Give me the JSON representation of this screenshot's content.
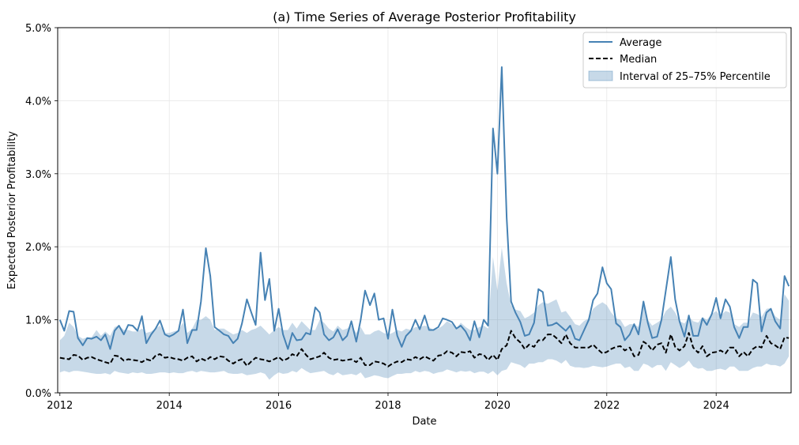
{
  "chart_data": {
    "type": "line",
    "title": "(a) Time Series of Average Posterior Profitability",
    "xlabel": "Date",
    "ylabel": "Expected Posterior Profitability",
    "xlim": [
      2011.96,
      2025.37
    ],
    "ylim": [
      0.0,
      5.0
    ],
    "x_ticks": [
      2012,
      2014,
      2016,
      2018,
      2020,
      2022,
      2024
    ],
    "x_tick_labels": [
      "2012",
      "2014",
      "2016",
      "2018",
      "2020",
      "2022",
      "2024"
    ],
    "y_ticks": [
      0,
      1,
      2,
      3,
      4,
      5
    ],
    "y_tick_labels": [
      "0.0%",
      "1.0%",
      "2.0%",
      "3.0%",
      "4.0%",
      "5.0%"
    ],
    "grid": true,
    "legend_position": "top-right",
    "x": [
      2012.0,
      2012.08,
      2012.17,
      2012.25,
      2012.33,
      2012.42,
      2012.5,
      2012.58,
      2012.67,
      2012.75,
      2012.83,
      2012.92,
      2013.0,
      2013.08,
      2013.17,
      2013.25,
      2013.33,
      2013.42,
      2013.5,
      2013.58,
      2013.67,
      2013.75,
      2013.83,
      2013.92,
      2014.0,
      2014.08,
      2014.17,
      2014.25,
      2014.33,
      2014.42,
      2014.5,
      2014.58,
      2014.67,
      2014.75,
      2014.83,
      2014.92,
      2015.0,
      2015.08,
      2015.17,
      2015.25,
      2015.33,
      2015.42,
      2015.5,
      2015.58,
      2015.67,
      2015.75,
      2015.83,
      2015.92,
      2016.0,
      2016.08,
      2016.17,
      2016.25,
      2016.33,
      2016.42,
      2016.5,
      2016.58,
      2016.67,
      2016.75,
      2016.83,
      2016.92,
      2017.0,
      2017.08,
      2017.17,
      2017.25,
      2017.33,
      2017.42,
      2017.5,
      2017.58,
      2017.67,
      2017.75,
      2017.83,
      2017.92,
      2018.0,
      2018.08,
      2018.17,
      2018.25,
      2018.33,
      2018.42,
      2018.5,
      2018.58,
      2018.67,
      2018.75,
      2018.83,
      2018.92,
      2019.0,
      2019.08,
      2019.17,
      2019.25,
      2019.33,
      2019.42,
      2019.5,
      2019.58,
      2019.67,
      2019.75,
      2019.83,
      2019.92,
      2020.0,
      2020.08,
      2020.17,
      2020.25,
      2020.33,
      2020.42,
      2020.5,
      2020.58,
      2020.67,
      2020.75,
      2020.83,
      2020.92,
      2021.0,
      2021.08,
      2021.17,
      2021.25,
      2021.33,
      2021.42,
      2021.5,
      2021.58,
      2021.67,
      2021.75,
      2021.83,
      2021.92,
      2022.0,
      2022.08,
      2022.17,
      2022.25,
      2022.33,
      2022.42,
      2022.5,
      2022.58,
      2022.67,
      2022.75,
      2022.83,
      2022.92,
      2023.0,
      2023.08,
      2023.17,
      2023.25,
      2023.33,
      2023.42,
      2023.5,
      2023.58,
      2023.67,
      2023.75,
      2023.83,
      2023.92,
      2024.0,
      2024.08,
      2024.17,
      2024.25,
      2024.33,
      2024.42,
      2024.5,
      2024.58,
      2024.67,
      2024.75,
      2024.83,
      2024.92,
      2025.0,
      2025.08,
      2025.17,
      2025.25,
      2025.33
    ],
    "series": [
      {
        "name": "Average",
        "color": "#4682b4",
        "style": "solid",
        "values": [
          1.0,
          0.85,
          1.12,
          1.11,
          0.75,
          0.65,
          0.75,
          0.74,
          0.77,
          0.72,
          0.8,
          0.6,
          0.85,
          0.92,
          0.8,
          0.93,
          0.92,
          0.85,
          1.05,
          0.68,
          0.8,
          0.88,
          0.99,
          0.8,
          0.77,
          0.8,
          0.85,
          1.14,
          0.68,
          0.86,
          0.86,
          1.25,
          1.98,
          1.6,
          0.9,
          0.85,
          0.8,
          0.78,
          0.68,
          0.74,
          0.95,
          1.28,
          1.1,
          0.93,
          1.92,
          1.27,
          1.56,
          0.85,
          1.15,
          0.8,
          0.6,
          0.82,
          0.72,
          0.73,
          0.82,
          0.8,
          1.17,
          1.1,
          0.8,
          0.72,
          0.76,
          0.87,
          0.72,
          0.78,
          0.98,
          0.7,
          1.0,
          1.4,
          1.2,
          1.36,
          1.0,
          1.02,
          0.74,
          1.14,
          0.78,
          0.63,
          0.78,
          0.85,
          1.0,
          0.87,
          1.06,
          0.86,
          0.86,
          0.9,
          1.02,
          1.0,
          0.97,
          0.88,
          0.92,
          0.84,
          0.72,
          0.98,
          0.76,
          1.0,
          0.92,
          3.62,
          3.0,
          4.46,
          2.4,
          1.25,
          1.1,
          0.97,
          0.78,
          0.8,
          0.96,
          1.42,
          1.38,
          0.92,
          0.93,
          0.96,
          0.9,
          0.85,
          0.92,
          0.74,
          0.72,
          0.85,
          1.0,
          1.27,
          1.36,
          1.72,
          1.5,
          1.42,
          0.95,
          0.9,
          0.72,
          0.8,
          0.94,
          0.8,
          1.25,
          0.96,
          0.75,
          0.77,
          1.0,
          1.4,
          1.86,
          1.28,
          0.98,
          0.77,
          1.06,
          0.78,
          0.78,
          1.02,
          0.93,
          1.08,
          1.3,
          1.02,
          1.28,
          1.18,
          0.9,
          0.75,
          0.9,
          0.9,
          1.55,
          1.5,
          0.84,
          1.1,
          1.15,
          0.98,
          0.88,
          1.6,
          1.46
        ]
      },
      {
        "name": "Median",
        "color": "#000000",
        "style": "dashed",
        "values": [
          0.48,
          0.47,
          0.46,
          0.52,
          0.51,
          0.45,
          0.48,
          0.49,
          0.46,
          0.44,
          0.42,
          0.4,
          0.51,
          0.5,
          0.44,
          0.46,
          0.45,
          0.44,
          0.42,
          0.46,
          0.44,
          0.51,
          0.53,
          0.48,
          0.49,
          0.47,
          0.46,
          0.44,
          0.48,
          0.5,
          0.43,
          0.47,
          0.44,
          0.49,
          0.46,
          0.5,
          0.49,
          0.44,
          0.4,
          0.44,
          0.46,
          0.37,
          0.43,
          0.48,
          0.46,
          0.45,
          0.43,
          0.46,
          0.49,
          0.44,
          0.47,
          0.53,
          0.5,
          0.6,
          0.52,
          0.46,
          0.48,
          0.5,
          0.55,
          0.48,
          0.45,
          0.46,
          0.44,
          0.45,
          0.46,
          0.42,
          0.48,
          0.38,
          0.38,
          0.43,
          0.42,
          0.4,
          0.36,
          0.4,
          0.43,
          0.42,
          0.46,
          0.45,
          0.49,
          0.46,
          0.5,
          0.47,
          0.44,
          0.51,
          0.52,
          0.57,
          0.55,
          0.5,
          0.56,
          0.55,
          0.57,
          0.48,
          0.53,
          0.52,
          0.45,
          0.52,
          0.45,
          0.6,
          0.65,
          0.85,
          0.75,
          0.69,
          0.6,
          0.66,
          0.63,
          0.72,
          0.72,
          0.8,
          0.8,
          0.75,
          0.68,
          0.8,
          0.68,
          0.62,
          0.62,
          0.62,
          0.62,
          0.66,
          0.6,
          0.54,
          0.56,
          0.6,
          0.63,
          0.64,
          0.58,
          0.62,
          0.5,
          0.52,
          0.7,
          0.66,
          0.58,
          0.66,
          0.68,
          0.55,
          0.8,
          0.63,
          0.58,
          0.64,
          0.82,
          0.62,
          0.55,
          0.64,
          0.5,
          0.55,
          0.56,
          0.58,
          0.54,
          0.62,
          0.62,
          0.5,
          0.56,
          0.5,
          0.6,
          0.64,
          0.62,
          0.78,
          0.68,
          0.65,
          0.6,
          0.76,
          0.75
        ]
      }
    ],
    "band": {
      "name": "Interval of 25–75% Percentile",
      "color": "#4682b4",
      "opacity": 0.3,
      "lower": [
        0.28,
        0.3,
        0.28,
        0.3,
        0.3,
        0.29,
        0.28,
        0.27,
        0.26,
        0.26,
        0.27,
        0.25,
        0.3,
        0.28,
        0.27,
        0.26,
        0.28,
        0.27,
        0.28,
        0.26,
        0.26,
        0.27,
        0.28,
        0.28,
        0.27,
        0.28,
        0.27,
        0.27,
        0.29,
        0.3,
        0.28,
        0.3,
        0.29,
        0.28,
        0.28,
        0.29,
        0.3,
        0.27,
        0.26,
        0.26,
        0.27,
        0.24,
        0.25,
        0.26,
        0.28,
        0.26,
        0.18,
        0.24,
        0.28,
        0.26,
        0.27,
        0.3,
        0.28,
        0.34,
        0.3,
        0.27,
        0.28,
        0.29,
        0.3,
        0.26,
        0.24,
        0.28,
        0.24,
        0.25,
        0.26,
        0.24,
        0.28,
        0.2,
        0.22,
        0.24,
        0.23,
        0.21,
        0.2,
        0.23,
        0.26,
        0.26,
        0.27,
        0.27,
        0.3,
        0.28,
        0.3,
        0.29,
        0.26,
        0.28,
        0.29,
        0.32,
        0.3,
        0.28,
        0.3,
        0.29,
        0.3,
        0.27,
        0.29,
        0.29,
        0.26,
        0.3,
        0.24,
        0.3,
        0.32,
        0.42,
        0.4,
        0.38,
        0.34,
        0.4,
        0.4,
        0.42,
        0.42,
        0.46,
        0.46,
        0.44,
        0.4,
        0.45,
        0.37,
        0.35,
        0.35,
        0.34,
        0.35,
        0.37,
        0.36,
        0.35,
        0.36,
        0.38,
        0.4,
        0.4,
        0.34,
        0.36,
        0.3,
        0.3,
        0.4,
        0.38,
        0.34,
        0.38,
        0.38,
        0.3,
        0.42,
        0.38,
        0.34,
        0.38,
        0.44,
        0.36,
        0.33,
        0.34,
        0.3,
        0.3,
        0.32,
        0.33,
        0.31,
        0.36,
        0.36,
        0.3,
        0.3,
        0.3,
        0.34,
        0.36,
        0.36,
        0.4,
        0.38,
        0.38,
        0.36,
        0.4,
        0.5
      ],
      "upper": [
        0.72,
        0.78,
        0.96,
        0.9,
        0.78,
        0.74,
        0.76,
        0.76,
        0.86,
        0.78,
        0.84,
        0.78,
        0.9,
        0.92,
        0.86,
        0.86,
        0.84,
        0.84,
        0.88,
        0.82,
        0.84,
        0.88,
        0.92,
        0.82,
        0.82,
        0.84,
        0.86,
        0.96,
        0.82,
        0.88,
        1.0,
        1.0,
        1.05,
        1.0,
        0.86,
        0.88,
        0.88,
        0.84,
        0.8,
        0.82,
        0.86,
        0.82,
        0.86,
        0.88,
        0.92,
        0.86,
        0.8,
        0.86,
        0.9,
        0.86,
        0.86,
        0.96,
        0.88,
        0.98,
        0.92,
        0.86,
        0.86,
        1.0,
        0.96,
        0.88,
        0.84,
        0.92,
        0.86,
        0.88,
        0.92,
        0.82,
        0.9,
        0.8,
        0.8,
        0.84,
        0.86,
        0.82,
        0.8,
        0.82,
        0.86,
        0.84,
        0.88,
        0.86,
        0.9,
        0.9,
        0.92,
        0.9,
        0.86,
        0.88,
        0.92,
        0.98,
        0.94,
        0.88,
        0.96,
        0.9,
        0.86,
        0.86,
        0.9,
        0.92,
        0.88,
        1.86,
        1.4,
        1.99,
        1.5,
        1.2,
        1.14,
        1.12,
        1.02,
        1.05,
        1.1,
        1.2,
        1.24,
        1.22,
        1.25,
        1.28,
        1.1,
        1.12,
        1.04,
        0.94,
        0.92,
        0.98,
        1.02,
        1.15,
        1.2,
        1.24,
        1.2,
        1.1,
        1.02,
        1.0,
        0.9,
        0.94,
        0.94,
        0.9,
        1.2,
        1.0,
        0.92,
        0.96,
        1.0,
        1.12,
        1.18,
        1.1,
        0.98,
        0.95,
        1.04,
        0.98,
        0.96,
        1.04,
        1.0,
        1.08,
        1.12,
        1.05,
        1.12,
        1.1,
        0.94,
        0.9,
        0.96,
        0.96,
        1.1,
        1.08,
        1.04,
        1.15,
        1.16,
        1.05,
        1.0,
        1.35,
        1.26
      ]
    }
  }
}
